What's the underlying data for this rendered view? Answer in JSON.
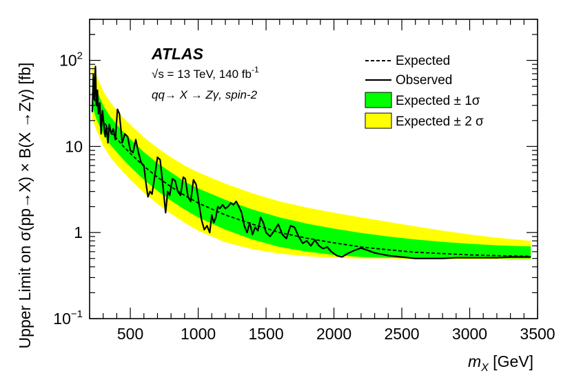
{
  "chart_data": {
    "type": "line",
    "experiment": "ATLAS",
    "energy_line": "√s = 13 TeV, 140 fb",
    "energy_sup": "-1",
    "process_line": "qq→ X → Zγ, spin-2",
    "ylabel": "Upper Limit on σ(pp→X) × B(X →Zγ) [fb]",
    "xlabel": "m_X [GeV]",
    "xlabel_main": "m",
    "xlabel_sub": "X",
    "xlabel_unit": " [GeV]",
    "xlim": [
      200,
      3500
    ],
    "ylim": [
      0.1,
      300
    ],
    "yscale": "log",
    "x_ticks": [
      "500",
      "1000",
      "1500",
      "2000",
      "2500",
      "3000",
      "3500"
    ],
    "y_ticks": [
      {
        "base": "10",
        "sup": "−1",
        "value": 0.1
      },
      {
        "base": "1",
        "sup": "",
        "value": 1
      },
      {
        "base": "10",
        "sup": "",
        "value": 10
      },
      {
        "base": "10",
        "sup": "2",
        "value": 100
      }
    ],
    "legend": [
      {
        "label": "Expected",
        "style": "dashed"
      },
      {
        "label": "Observed",
        "style": "solid"
      },
      {
        "label": "Expected ± 1σ",
        "style": "band",
        "color": "#00ff00"
      },
      {
        "label": "Expected ± 2 σ",
        "style": "band",
        "color": "#ffff00"
      }
    ],
    "legend_position": "top-right",
    "colors": {
      "band1": "#00ff00",
      "band2": "#ffff00",
      "line": "#000000"
    },
    "expected": {
      "x": [
        220,
        250,
        300,
        350,
        400,
        450,
        500,
        600,
        700,
        800,
        900,
        1000,
        1200,
        1400,
        1600,
        1800,
        2000,
        2200,
        2400,
        2600,
        2800,
        3000,
        3200,
        3450
      ],
      "y": [
        42,
        31,
        20,
        15,
        12.3,
        10,
        8.3,
        5.9,
        4.4,
        3.4,
        2.7,
        2.2,
        1.6,
        1.25,
        1.0,
        0.86,
        0.76,
        0.68,
        0.63,
        0.59,
        0.57,
        0.55,
        0.54,
        0.53
      ]
    },
    "band_1sigma": {
      "x": [
        220,
        250,
        300,
        350,
        400,
        450,
        500,
        600,
        700,
        800,
        900,
        1000,
        1200,
        1400,
        1600,
        1800,
        2000,
        2200,
        2400,
        2600,
        2800,
        3000,
        3200,
        3450
      ],
      "lower": [
        29,
        21,
        14,
        10.6,
        8.6,
        7.0,
        5.8,
        4.1,
        3.05,
        2.35,
        1.85,
        1.5,
        1.08,
        0.83,
        0.68,
        0.6,
        0.55,
        0.52,
        0.51,
        0.5,
        0.5,
        0.5,
        0.5,
        0.5
      ],
      "upper": [
        62,
        46,
        30,
        22.5,
        18,
        14.7,
        12.2,
        8.6,
        6.4,
        5.0,
        3.9,
        3.25,
        2.4,
        1.85,
        1.5,
        1.27,
        1.11,
        0.99,
        0.9,
        0.83,
        0.78,
        0.74,
        0.71,
        0.69
      ]
    },
    "band_2sigma": {
      "x": [
        220,
        250,
        300,
        350,
        400,
        450,
        500,
        600,
        700,
        800,
        900,
        1000,
        1200,
        1400,
        1600,
        1800,
        2000,
        2200,
        2400,
        2600,
        2800,
        3000,
        3200,
        3450
      ],
      "lower": [
        21,
        15.5,
        10.2,
        7.6,
        6.1,
        5.0,
        4.1,
        2.9,
        2.15,
        1.65,
        1.3,
        1.05,
        0.77,
        0.64,
        0.57,
        0.53,
        0.51,
        0.5,
        0.5,
        0.49,
        0.49,
        0.49,
        0.49,
        0.49
      ],
      "upper": [
        90,
        67,
        44,
        33,
        26.5,
        21.5,
        18,
        12.8,
        9.6,
        7.5,
        6.0,
        5.0,
        3.7,
        2.85,
        2.3,
        1.95,
        1.7,
        1.5,
        1.33,
        1.18,
        1.05,
        0.95,
        0.87,
        0.8
      ]
    },
    "observed": {
      "x": [
        220,
        228,
        235,
        243,
        250,
        258,
        265,
        275,
        285,
        295,
        305,
        315,
        325,
        335,
        345,
        360,
        375,
        390,
        405,
        420,
        440,
        460,
        480,
        500,
        520,
        540,
        560,
        580,
        600,
        615,
        630,
        645,
        660,
        680,
        700,
        720,
        740,
        760,
        775,
        790,
        810,
        830,
        850,
        870,
        890,
        905,
        925,
        945,
        965,
        985,
        1005,
        1025,
        1045,
        1065,
        1085,
        1100,
        1115,
        1130,
        1145,
        1160,
        1180,
        1200,
        1220,
        1240,
        1260,
        1280,
        1300,
        1320,
        1340,
        1360,
        1380,
        1400,
        1420,
        1440,
        1460,
        1480,
        1500,
        1530,
        1560,
        1590,
        1620,
        1650,
        1680,
        1710,
        1740,
        1770,
        1800,
        1830,
        1860,
        1890,
        1920,
        1950,
        1980,
        2020,
        2060,
        2100,
        2150,
        2200,
        2250,
        2300,
        2400,
        2500,
        2600,
        2700,
        2800,
        2900,
        3000,
        3100,
        3200,
        3300,
        3450
      ],
      "y": [
        25,
        68,
        35,
        85,
        30,
        45,
        24,
        32,
        14,
        26,
        18,
        13,
        17,
        11,
        18,
        14,
        16,
        12,
        27,
        24,
        11,
        14,
        13,
        9,
        8.5,
        12,
        8.5,
        6.5,
        6,
        3.8,
        2.6,
        3.0,
        2.8,
        4.5,
        7.5,
        7.0,
        3.5,
        1.7,
        3.0,
        2.7,
        4.2,
        4.0,
        3.0,
        2.7,
        4.4,
        4.2,
        2.6,
        2.3,
        4.1,
        3.6,
        2.2,
        1.4,
        1.08,
        1.2,
        1.0,
        1.6,
        1.3,
        1.5,
        2.0,
        1.9,
        2.1,
        1.9,
        2.0,
        2.2,
        2.1,
        2.3,
        2.0,
        1.7,
        1.2,
        1.0,
        1.3,
        0.95,
        1.15,
        1.05,
        1.5,
        1.3,
        1.0,
        0.9,
        1.05,
        1.25,
        0.95,
        0.85,
        1.2,
        1.15,
        0.9,
        0.75,
        0.8,
        0.7,
        0.82,
        0.7,
        0.65,
        0.68,
        0.6,
        0.54,
        0.52,
        0.57,
        0.62,
        0.66,
        0.62,
        0.58,
        0.54,
        0.52,
        0.5,
        0.5,
        0.5,
        0.51,
        0.51,
        0.51,
        0.51,
        0.52,
        0.52
      ]
    }
  }
}
